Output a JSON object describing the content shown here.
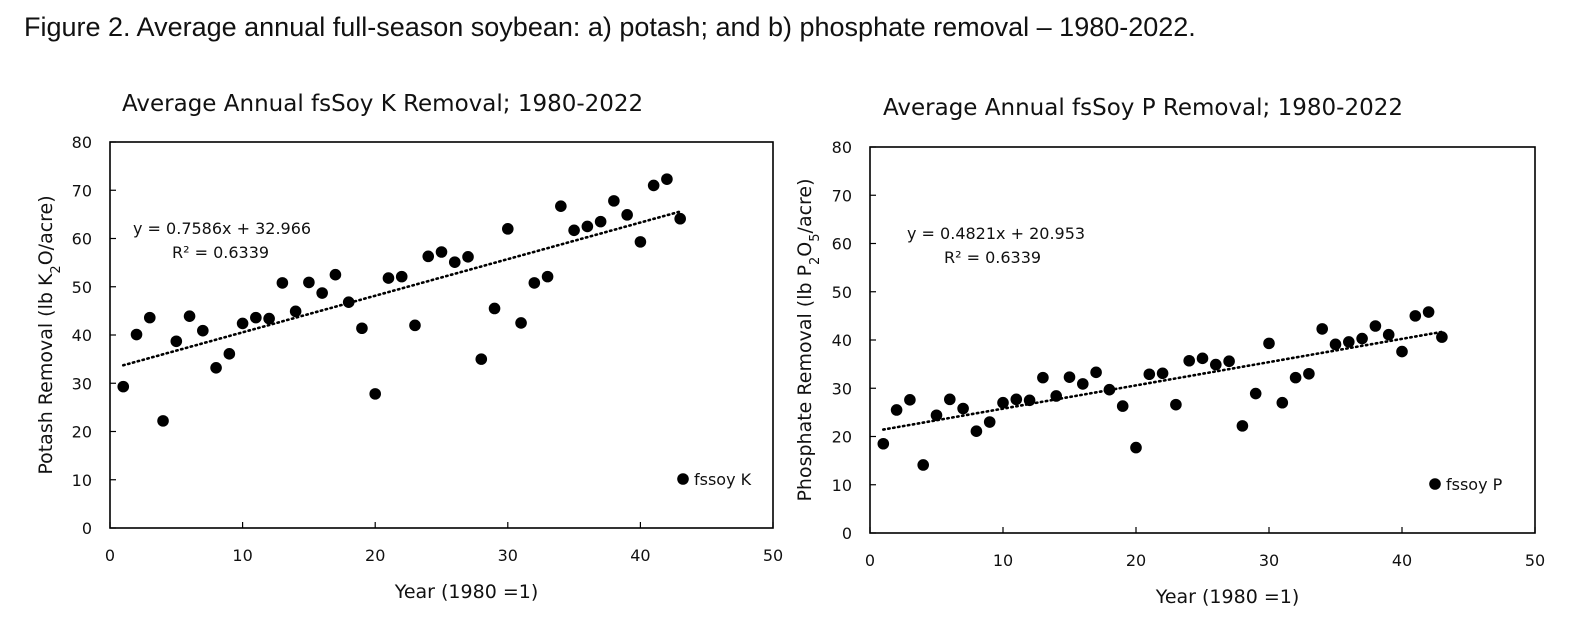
{
  "figure_caption": "Figure 2. Average annual full-season soybean: a) potash; and b) phosphate removal – 1980-2022.",
  "chart_data": [
    {
      "type": "scatter",
      "title": "Average Annual fsSoy K Removal; 1980-2022",
      "xlabel": "Year (1980 =1)",
      "ylabel_parts": [
        "Potash Removal (lb K",
        "2",
        "O/acre)"
      ],
      "xlim": [
        0,
        50
      ],
      "ylim": [
        0,
        80
      ],
      "xticks": [
        0,
        10,
        20,
        30,
        40,
        50
      ],
      "yticks": [
        0,
        10,
        20,
        30,
        40,
        50,
        60,
        70,
        80
      ],
      "xtick_labels": [
        "0",
        "10",
        "20",
        "30",
        "40",
        "50"
      ],
      "ytick_labels": [
        "0",
        "10",
        "20",
        "30",
        "40",
        "50",
        "60",
        "70",
        "80"
      ],
      "grid": false,
      "marker_color": "#000000",
      "series": [
        {
          "name": "fssoy K",
          "x": [
            1,
            2,
            3,
            4,
            5,
            6,
            7,
            8,
            9,
            10,
            11,
            12,
            13,
            14,
            15,
            16,
            17,
            18,
            19,
            20,
            21,
            22,
            23,
            24,
            25,
            26,
            27,
            28,
            29,
            30,
            31,
            32,
            33,
            34,
            35,
            36,
            37,
            38,
            39,
            40,
            41,
            42,
            43
          ],
          "y": [
            29.3,
            40.1,
            43.6,
            22.2,
            38.7,
            43.9,
            40.9,
            33.2,
            36.1,
            42.4,
            43.6,
            43.4,
            50.8,
            44.9,
            50.9,
            48.7,
            52.5,
            46.8,
            41.4,
            27.8,
            51.8,
            52.1,
            42.0,
            56.3,
            57.2,
            55.1,
            56.2,
            35.0,
            45.5,
            62.0,
            42.5,
            50.8,
            52.1,
            66.7,
            61.7,
            62.5,
            63.5,
            67.8,
            64.9,
            59.3,
            71.0,
            72.3,
            64.1
          ]
        }
      ],
      "trendline": {
        "style": "dotted",
        "slope": 0.7586,
        "intercept": 32.966,
        "x_range": [
          1,
          43
        ],
        "equation": "y = 0.7586x + 32.966",
        "r2": "R² = 0.6339"
      },
      "legend_position": "bottom-right"
    },
    {
      "type": "scatter",
      "title": "Average Annual fsSoy P Removal; 1980-2022",
      "xlabel": "Year (1980 =1)",
      "ylabel_parts": [
        "Phosphate Removal (lb P",
        "2",
        "O",
        "5",
        "/acre)"
      ],
      "xlim": [
        0,
        50
      ],
      "ylim": [
        0,
        80
      ],
      "xticks": [
        0,
        10,
        20,
        30,
        40,
        50
      ],
      "yticks": [
        0,
        10,
        20,
        30,
        40,
        50,
        60,
        70,
        80
      ],
      "xtick_labels": [
        "0",
        "10",
        "20",
        "30",
        "40",
        "50"
      ],
      "ytick_labels": [
        "0",
        "10",
        "20",
        "30",
        "40",
        "50",
        "60",
        "70",
        "80"
      ],
      "grid": false,
      "marker_color": "#000000",
      "series": [
        {
          "name": "fssoy P",
          "x": [
            1,
            2,
            3,
            4,
            5,
            6,
            7,
            8,
            9,
            10,
            11,
            12,
            13,
            14,
            15,
            16,
            17,
            18,
            19,
            20,
            21,
            22,
            23,
            24,
            25,
            26,
            27,
            28,
            29,
            30,
            31,
            32,
            33,
            34,
            35,
            36,
            37,
            38,
            39,
            40,
            41,
            42,
            43
          ],
          "y": [
            18.5,
            25.5,
            27.6,
            14.1,
            24.4,
            27.7,
            25.8,
            21.1,
            23.0,
            27.0,
            27.7,
            27.5,
            32.2,
            28.4,
            32.3,
            30.9,
            33.3,
            29.7,
            26.3,
            17.7,
            32.9,
            33.1,
            26.6,
            35.7,
            36.2,
            34.9,
            35.6,
            22.2,
            28.9,
            39.3,
            27.0,
            32.2,
            33.0,
            42.3,
            39.1,
            39.6,
            40.3,
            42.9,
            41.1,
            37.6,
            45.0,
            45.8,
            40.6
          ]
        }
      ],
      "trendline": {
        "style": "dotted",
        "slope": 0.4821,
        "intercept": 20.953,
        "x_range": [
          1,
          43
        ],
        "equation": "y = 0.4821x + 20.953",
        "r2": "R² = 0.6339"
      },
      "legend_position": "bottom-right"
    }
  ]
}
